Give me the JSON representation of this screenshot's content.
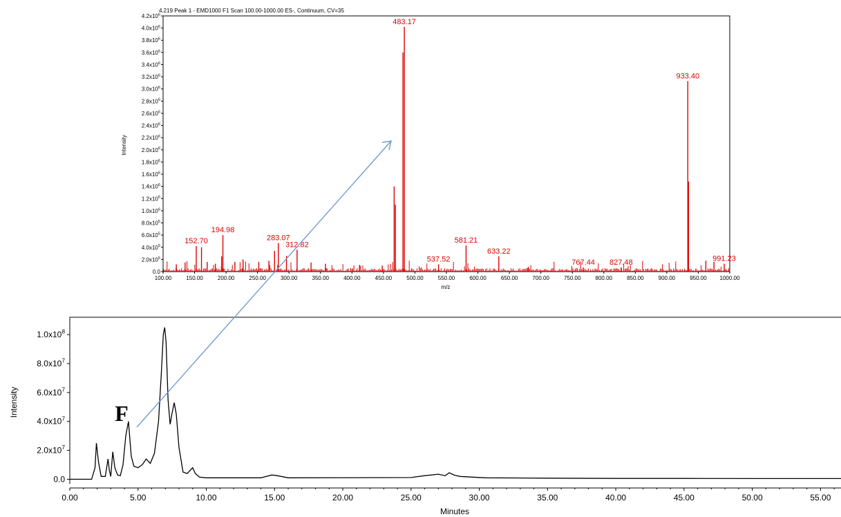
{
  "figure_label": "F",
  "chart_data": [
    {
      "type": "line",
      "title": "4.219 Peak 1 - EMD1000 F1 Scan 100.00-1000.00 ES-, Continuum, CV=35",
      "xlabel": "m/z",
      "ylabel": "Intensity",
      "xlim": [
        100,
        1000
      ],
      "ylim": [
        0,
        4200000
      ],
      "x_ticks": [
        "100.00",
        "150.00",
        "200.00",
        "250.00",
        "300.00",
        "350.00",
        "400.00",
        "450.00",
        "500.00",
        "550.00",
        "600.00",
        "650.00",
        "700.00",
        "750.00",
        "800.00",
        "850.00",
        "900.00",
        "950.00",
        "1000.00"
      ],
      "y_ticks": [
        {
          "value": 0,
          "label": "0.0"
        },
        {
          "value": 200000,
          "mant": "2.0x10",
          "exp": "5"
        },
        {
          "value": 400000,
          "mant": "4.0x10",
          "exp": "5"
        },
        {
          "value": 600000,
          "mant": "6.0x10",
          "exp": "5"
        },
        {
          "value": 800000,
          "mant": "8.0x10",
          "exp": "5"
        },
        {
          "value": 1000000,
          "mant": "1.0x10",
          "exp": "6"
        },
        {
          "value": 1200000,
          "mant": "1.2x10",
          "exp": "6"
        },
        {
          "value": 1400000,
          "mant": "1.4x10",
          "exp": "6"
        },
        {
          "value": 1600000,
          "mant": "1.6x10",
          "exp": "6"
        },
        {
          "value": 1800000,
          "mant": "1.8x10",
          "exp": "6"
        },
        {
          "value": 2000000,
          "mant": "2.0x10",
          "exp": "6"
        },
        {
          "value": 2200000,
          "mant": "2.2x10",
          "exp": "6"
        },
        {
          "value": 2400000,
          "mant": "2.4x10",
          "exp": "6"
        },
        {
          "value": 2600000,
          "mant": "2.6x10",
          "exp": "6"
        },
        {
          "value": 2800000,
          "mant": "2.8x10",
          "exp": "6"
        },
        {
          "value": 3000000,
          "mant": "3.0x10",
          "exp": "6"
        },
        {
          "value": 3200000,
          "mant": "3.2x10",
          "exp": "6"
        },
        {
          "value": 3400000,
          "mant": "3.4x10",
          "exp": "6"
        },
        {
          "value": 3600000,
          "mant": "3.6x10",
          "exp": "6"
        },
        {
          "value": 3800000,
          "mant": "3.8x10",
          "exp": "6"
        },
        {
          "value": 4000000,
          "mant": "4.0x10",
          "exp": "6"
        },
        {
          "value": 4200000,
          "mant": "4.2x10",
          "exp": "6"
        }
      ],
      "peaks": [
        {
          "x": 121,
          "y": 120000
        },
        {
          "x": 135,
          "y": 150000
        },
        {
          "x": 152.7,
          "y": 420000,
          "label": "152.70"
        },
        {
          "x": 161,
          "y": 400000
        },
        {
          "x": 170,
          "y": 160000
        },
        {
          "x": 183,
          "y": 130000
        },
        {
          "x": 193,
          "y": 250000
        },
        {
          "x": 194.98,
          "y": 600000,
          "label": "194.98"
        },
        {
          "x": 214,
          "y": 160000
        },
        {
          "x": 227,
          "y": 200000
        },
        {
          "x": 252,
          "y": 160000
        },
        {
          "x": 268,
          "y": 180000
        },
        {
          "x": 277,
          "y": 340000
        },
        {
          "x": 283.07,
          "y": 470000,
          "label": "283.07"
        },
        {
          "x": 296,
          "y": 260000
        },
        {
          "x": 312.82,
          "y": 360000,
          "label": "312.82"
        },
        {
          "x": 335,
          "y": 150000
        },
        {
          "x": 358,
          "y": 130000
        },
        {
          "x": 412,
          "y": 110000
        },
        {
          "x": 448,
          "y": 100000
        },
        {
          "x": 467,
          "y": 1400000
        },
        {
          "x": 469,
          "y": 1100000
        },
        {
          "x": 481,
          "y": 3600000
        },
        {
          "x": 483.17,
          "y": 4020000,
          "label": "483.17"
        },
        {
          "x": 537.52,
          "y": 120000,
          "label": "537.52"
        },
        {
          "x": 581.21,
          "y": 430000,
          "label": "581.21"
        },
        {
          "x": 633.22,
          "y": 250000,
          "label": "633.22"
        },
        {
          "x": 680,
          "y": 80000
        },
        {
          "x": 767.44,
          "y": 70000,
          "label": "767.44"
        },
        {
          "x": 827.48,
          "y": 70000,
          "label": "827.48"
        },
        {
          "x": 934.5,
          "y": 1480000
        },
        {
          "x": 933.4,
          "y": 3130000,
          "label": "933.40"
        },
        {
          "x": 962,
          "y": 180000
        },
        {
          "x": 975,
          "y": 160000
        },
        {
          "x": 991.23,
          "y": 130000,
          "label": "991.23"
        }
      ]
    },
    {
      "type": "line",
      "xlabel": "Minutes",
      "ylabel": "Intensity",
      "xlim": [
        0,
        56.5
      ],
      "ylim": [
        -6000000,
        112000000
      ],
      "x_ticks": [
        "0.00",
        "5.00",
        "10.00",
        "15.00",
        "20.00",
        "25.00",
        "30.00",
        "35.00",
        "40.00",
        "45.00",
        "50.00",
        "55.00"
      ],
      "y_ticks": [
        {
          "value": 0,
          "label": "0.0"
        },
        {
          "value": 20000000,
          "mant": "2.0x10",
          "exp": "7"
        },
        {
          "value": 40000000,
          "mant": "4.0x10",
          "exp": "7"
        },
        {
          "value": 60000000,
          "mant": "6.0x10",
          "exp": "7"
        },
        {
          "value": 80000000,
          "mant": "8.0x10",
          "exp": "7"
        },
        {
          "value": 100000000,
          "mant": "1.0x10",
          "exp": "8"
        }
      ],
      "series": [
        {
          "x": [
            0,
            1.6,
            1.85,
            1.95,
            2.1,
            2.3,
            2.6,
            2.8,
            2.9,
            3.0,
            3.15,
            3.3,
            3.5,
            3.7,
            3.9,
            4.1,
            4.3,
            4.5,
            4.7,
            5.0,
            5.3,
            5.6,
            5.9,
            6.2,
            6.5,
            6.7,
            6.85,
            6.95,
            7.05,
            7.2,
            7.35,
            7.5,
            7.65,
            7.8,
            8.0,
            8.3,
            8.6,
            9.0,
            9.2,
            9.5,
            10.0,
            12.0,
            14.0,
            14.8,
            15.2,
            16.0,
            25.0,
            26.0,
            27.0,
            27.5,
            27.8,
            28.2,
            28.6,
            29.5,
            30.5,
            35.0,
            40.0,
            45.0,
            50.0,
            56.5
          ],
          "y": [
            0,
            0,
            8000000,
            25000000,
            12000000,
            2000000,
            2000000,
            14000000,
            6000000,
            2000000,
            19000000,
            8000000,
            3000000,
            2500000,
            10000000,
            30000000,
            40000000,
            16000000,
            9000000,
            8000000,
            10000000,
            14000000,
            11000000,
            18000000,
            40000000,
            72000000,
            100000000,
            105000000,
            95000000,
            55000000,
            38000000,
            46000000,
            53000000,
            45000000,
            22000000,
            5000000,
            4000000,
            8000000,
            4000000,
            1500000,
            1000000,
            1000000,
            1000000,
            3000000,
            2500000,
            1000000,
            1200000,
            2500000,
            3500000,
            2500000,
            4500000,
            2800000,
            2000000,
            1500000,
            1000000,
            800000,
            600000,
            600000,
            500000,
            500000
          ]
        }
      ]
    }
  ]
}
